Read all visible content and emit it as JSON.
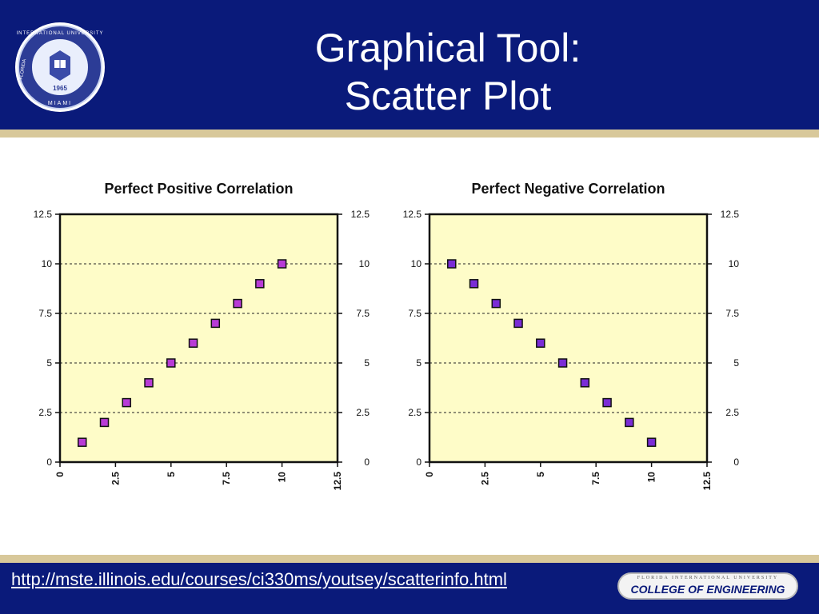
{
  "header": {
    "title_line1": "Graphical Tool:",
    "title_line2": "Scatter Plot",
    "seal_text_top": "INTERNATIONAL UNIVERSITY",
    "seal_text_bottom": "MIAMI",
    "seal_year": "1965",
    "seal_left": "FLORIDA"
  },
  "footer": {
    "url": "http://mste.illinois.edu/courses/ci330ms/youtsey/scatterinfo.html",
    "logo_small": "FLORIDA INTERNATIONAL UNIVERSITY",
    "logo_main": "COLLEGE OF ENGINEERING"
  },
  "colors": {
    "header_bg": "#0a1a7a",
    "gold": "#d8c89a",
    "plot_bg": "#fefcc8",
    "marker_positive": "#b83bd6",
    "marker_negative": "#7a2cd6"
  },
  "chart_data": [
    {
      "type": "scatter",
      "title": "Perfect Positive Correlation",
      "xlim": [
        0,
        12.5
      ],
      "ylim": [
        0,
        12.5
      ],
      "x_ticks": [
        "0",
        "2.5",
        "5",
        "7.5",
        "10",
        "12.5"
      ],
      "y_ticks": [
        "0",
        "2.5",
        "5",
        "7.5",
        "10",
        "12.5"
      ],
      "y_ticks_right": [
        "0",
        "2.5",
        "5",
        "7.5",
        "10",
        "12.5"
      ],
      "grid": "horizontal dashed",
      "series": [
        {
          "x": [
            1,
            2,
            3,
            4,
            5,
            6,
            7,
            8,
            9,
            10
          ],
          "y": [
            1,
            2,
            3,
            4,
            5,
            6,
            7,
            8,
            9,
            10
          ]
        }
      ]
    },
    {
      "type": "scatter",
      "title": "Perfect Negative Correlation",
      "xlim": [
        0,
        12.5
      ],
      "ylim": [
        0,
        12.5
      ],
      "x_ticks": [
        "0",
        "2.5",
        "5",
        "7.5",
        "10",
        "12.5"
      ],
      "y_ticks": [
        "0",
        "2.5",
        "5",
        "7.5",
        "10",
        "12.5"
      ],
      "y_ticks_right": [
        "0",
        "2.5",
        "5",
        "7.5",
        "10",
        "12.5"
      ],
      "grid": "horizontal dashed",
      "series": [
        {
          "x": [
            1,
            2,
            3,
            4,
            5,
            6,
            7,
            8,
            9,
            10
          ],
          "y": [
            10,
            9,
            8,
            7,
            6,
            5,
            4,
            3,
            2,
            1
          ]
        }
      ]
    }
  ]
}
